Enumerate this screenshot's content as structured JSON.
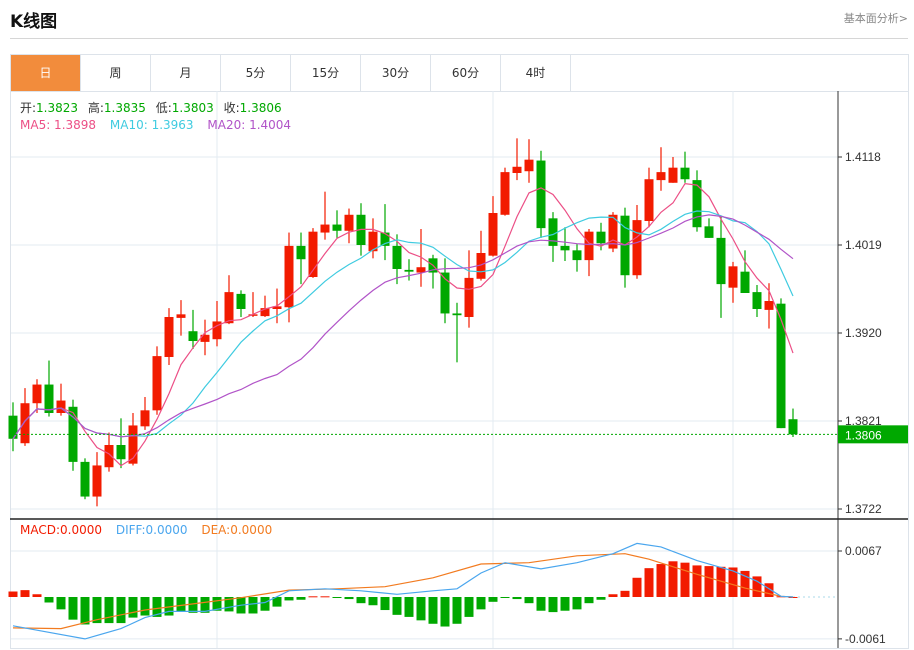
{
  "header": {
    "title": "K线图",
    "link": "基本面分析>"
  },
  "tabs": [
    {
      "label": "日",
      "active": true
    },
    {
      "label": "周"
    },
    {
      "label": "月"
    },
    {
      "label": "5分"
    },
    {
      "label": "15分"
    },
    {
      "label": "30分"
    },
    {
      "label": "60分"
    },
    {
      "label": "4时"
    }
  ],
  "ohlc_info": {
    "open_label": "开:",
    "open": "1.3823",
    "high_label": "高:",
    "high": "1.3835",
    "low_label": "低:",
    "low": "1.3803",
    "close_label": "收:",
    "close": "1.3806"
  },
  "ma_info": {
    "ma5": "MA5: 1.3898",
    "ma10": "MA10: 1.3963",
    "ma20": "MA20: 1.4004"
  },
  "macd_info": {
    "macd": "MACD:0.0000",
    "diff": "DIFF:0.0000",
    "dea": "DEA:0.0000"
  },
  "colors": {
    "up": "#f21b00",
    "down": "#00a800",
    "ma5": "#ec4f86",
    "ma10": "#3fcbe0",
    "ma20": "#b154c8",
    "diff": "#4aa6ee",
    "dea": "#f27b20",
    "accent": "#f28c3c"
  },
  "chart_data": [
    {
      "type": "candlestick",
      "y_ticks": [
        "1.4118",
        "1.4019",
        "1.3920",
        "1.3821",
        "1.3722"
      ],
      "ylim": [
        1.3722,
        1.4118
      ],
      "last_price": "1.3806",
      "grid": true,
      "ma_periods": [
        5,
        10,
        20
      ],
      "candles_ohlc": [
        [
          1.3827,
          1.3842,
          1.3787,
          1.3801
        ],
        [
          1.3796,
          1.3858,
          1.3793,
          1.3841
        ],
        [
          1.3841,
          1.3868,
          1.383,
          1.3862
        ],
        [
          1.3862,
          1.3889,
          1.3826,
          1.383
        ],
        [
          1.383,
          1.3863,
          1.3827,
          1.3844
        ],
        [
          1.3837,
          1.3845,
          1.3765,
          1.3775
        ],
        [
          1.3775,
          1.3779,
          1.3733,
          1.3736
        ],
        [
          1.3736,
          1.3786,
          1.3725,
          1.3771
        ],
        [
          1.3769,
          1.3808,
          1.3764,
          1.3794
        ],
        [
          1.3794,
          1.3824,
          1.3768,
          1.3778
        ],
        [
          1.3773,
          1.383,
          1.3771,
          1.3816
        ],
        [
          1.3815,
          1.3848,
          1.3811,
          1.3833
        ],
        [
          1.3833,
          1.3905,
          1.3828,
          1.3894
        ],
        [
          1.3893,
          1.3948,
          1.3884,
          1.3938
        ],
        [
          1.3937,
          1.3957,
          1.3917,
          1.3941
        ],
        [
          1.3922,
          1.3946,
          1.3902,
          1.3911
        ],
        [
          1.391,
          1.3935,
          1.3895,
          1.3918
        ],
        [
          1.3913,
          1.3956,
          1.3905,
          1.3933
        ],
        [
          1.3931,
          1.3985,
          1.393,
          1.3966
        ],
        [
          1.3964,
          1.3968,
          1.3938,
          1.3947
        ],
        [
          1.394,
          1.3966,
          1.3938,
          1.3941
        ],
        [
          1.3939,
          1.3962,
          1.3938,
          1.3948
        ],
        [
          1.3947,
          1.397,
          1.3931,
          1.395
        ],
        [
          1.3949,
          1.4033,
          1.3932,
          1.4018
        ],
        [
          1.4018,
          1.4033,
          1.3975,
          1.4003
        ],
        [
          1.3983,
          1.4038,
          1.3982,
          1.4034
        ],
        [
          1.4033,
          1.4079,
          1.4025,
          1.4042
        ],
        [
          1.4042,
          1.4058,
          1.4027,
          1.4035
        ],
        [
          1.4035,
          1.406,
          1.4021,
          1.4053
        ],
        [
          1.4053,
          1.4066,
          1.4007,
          1.4019
        ],
        [
          1.4012,
          1.4049,
          1.4004,
          1.4034
        ],
        [
          1.4033,
          1.4065,
          1.4002,
          1.4018
        ],
        [
          1.4018,
          1.4031,
          1.3975,
          1.3992
        ],
        [
          1.3991,
          1.4003,
          1.3979,
          1.3989
        ],
        [
          1.3988,
          1.4037,
          1.3972,
          1.3994
        ],
        [
          1.4004,
          1.4008,
          1.397,
          1.3988
        ],
        [
          1.3988,
          1.4004,
          1.3931,
          1.3942
        ],
        [
          1.3942,
          1.3954,
          1.3887,
          1.394
        ],
        [
          1.3938,
          1.4013,
          1.3926,
          1.3982
        ],
        [
          1.3981,
          1.4035,
          1.3979,
          1.401
        ],
        [
          1.4007,
          1.4074,
          1.4006,
          1.4055
        ],
        [
          1.4053,
          1.4106,
          1.4052,
          1.4101
        ],
        [
          1.41,
          1.4139,
          1.4092,
          1.4107
        ],
        [
          1.4102,
          1.4138,
          1.4089,
          1.4115
        ],
        [
          1.4114,
          1.4125,
          1.4027,
          1.4038
        ],
        [
          1.4049,
          1.4056,
          1.4,
          1.4018
        ],
        [
          1.4018,
          1.4039,
          1.4001,
          1.4013
        ],
        [
          1.4013,
          1.402,
          1.3989,
          1.4002
        ],
        [
          1.4002,
          1.4037,
          1.3984,
          1.4034
        ],
        [
          1.4034,
          1.4044,
          1.4013,
          1.4021
        ],
        [
          1.4015,
          1.4056,
          1.4011,
          1.4053
        ],
        [
          1.4052,
          1.4061,
          1.3971,
          1.3985
        ],
        [
          1.3985,
          1.4064,
          1.3981,
          1.4047
        ],
        [
          1.4046,
          1.4106,
          1.4039,
          1.4093
        ],
        [
          1.4092,
          1.4129,
          1.408,
          1.4101
        ],
        [
          1.4089,
          1.4118,
          1.4089,
          1.4106
        ],
        [
          1.4106,
          1.4124,
          1.4089,
          1.4093
        ],
        [
          1.4092,
          1.4103,
          1.4034,
          1.4039
        ],
        [
          1.404,
          1.4049,
          1.4027,
          1.4027
        ],
        [
          1.4027,
          1.4051,
          1.3937,
          1.3975
        ],
        [
          1.3971,
          1.4,
          1.3954,
          1.3995
        ],
        [
          1.3989,
          1.4013,
          1.3965,
          1.3965
        ],
        [
          1.3966,
          1.3974,
          1.3938,
          1.3947
        ],
        [
          1.3946,
          1.3976,
          1.3925,
          1.3956
        ],
        [
          1.3953,
          1.3959,
          1.3813,
          1.3813
        ],
        [
          1.3823,
          1.3835,
          1.3803,
          1.3806
        ]
      ]
    },
    {
      "type": "macd",
      "y_ticks": [
        "0.0067",
        "-0.0061"
      ],
      "ylim": [
        -0.0061,
        0.0067
      ],
      "histogram": [
        0.0008,
        0.001,
        0.0004,
        -0.0008,
        -0.0018,
        -0.0033,
        -0.004,
        -0.0038,
        -0.0038,
        -0.0038,
        -0.003,
        -0.0027,
        -0.0029,
        -0.0027,
        -0.0021,
        -0.0023,
        -0.0023,
        -0.002,
        -0.0021,
        -0.0024,
        -0.0024,
        -0.002,
        -0.0014,
        -0.0005,
        -0.0004,
        0.0001,
        0.0001,
        -0.0001,
        -0.0003,
        -0.0009,
        -0.0012,
        -0.0019,
        -0.0026,
        -0.0029,
        -0.0034,
        -0.0039,
        -0.0043,
        -0.0039,
        -0.0029,
        -0.0018,
        -0.0007,
        -0.0001,
        -0.0003,
        -0.0009,
        -0.002,
        -0.0022,
        -0.002,
        -0.0018,
        -0.0009,
        -0.0004,
        0.0004,
        0.0009,
        0.0028,
        0.0042,
        0.0048,
        0.0052,
        0.005,
        0.0046,
        0.0045,
        0.0044,
        0.0043,
        0.0038,
        0.003,
        0.002,
        0.0001,
        0
      ],
      "diff": [
        [
          0,
          -0.0042
        ],
        [
          6,
          -0.0061
        ],
        [
          9,
          -0.0046
        ],
        [
          11,
          -0.003
        ],
        [
          13,
          -0.0021
        ],
        [
          16,
          -0.0021
        ],
        [
          19,
          -0.0012
        ],
        [
          21,
          -0.0008
        ],
        [
          23,
          0.0009
        ],
        [
          26,
          0.0012
        ],
        [
          29,
          0.0009
        ],
        [
          32,
          0.0004
        ],
        [
          35,
          0.0009
        ],
        [
          37,
          0.0012
        ],
        [
          39,
          0.0035
        ],
        [
          41,
          0.005
        ],
        [
          44,
          0.0041
        ],
        [
          47,
          0.005
        ],
        [
          50,
          0.0063
        ],
        [
          52,
          0.0078
        ],
        [
          54,
          0.0073
        ],
        [
          57,
          0.0053
        ],
        [
          60,
          0.0038
        ],
        [
          62,
          0.0023
        ],
        [
          64,
          0.0001
        ],
        [
          65,
          0.0
        ]
      ],
      "dea": [
        [
          0,
          -0.0045
        ],
        [
          4,
          -0.0046
        ],
        [
          7,
          -0.0033
        ],
        [
          11,
          -0.0019
        ],
        [
          15,
          -0.001
        ],
        [
          19,
          -0.0001
        ],
        [
          23,
          0.001
        ],
        [
          27,
          0.0012
        ],
        [
          31,
          0.0015
        ],
        [
          35,
          0.0028
        ],
        [
          39,
          0.0048
        ],
        [
          43,
          0.005
        ],
        [
          47,
          0.006
        ],
        [
          51,
          0.0063
        ],
        [
          53,
          0.0055
        ],
        [
          57,
          0.0033
        ],
        [
          61,
          0.0013
        ],
        [
          64,
          0.0001
        ],
        [
          65,
          0.0
        ]
      ]
    }
  ]
}
